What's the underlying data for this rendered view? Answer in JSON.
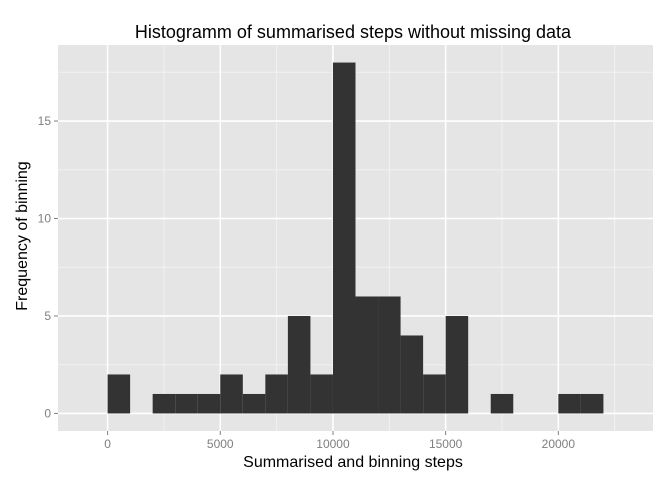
{
  "chart_data": {
    "type": "bar",
    "title": "Histogramm of summarised steps without missing data",
    "xlabel": "Summarised and binning steps",
    "ylabel": "Frequency of binning",
    "binwidth": 1000,
    "bins": [
      {
        "x0": 0,
        "x1": 1000,
        "count": 2
      },
      {
        "x0": 1000,
        "x1": 2000,
        "count": 0
      },
      {
        "x0": 2000,
        "x1": 3000,
        "count": 1
      },
      {
        "x0": 3000,
        "x1": 4000,
        "count": 1
      },
      {
        "x0": 4000,
        "x1": 5000,
        "count": 1
      },
      {
        "x0": 5000,
        "x1": 6000,
        "count": 2
      },
      {
        "x0": 6000,
        "x1": 7000,
        "count": 1
      },
      {
        "x0": 7000,
        "x1": 8000,
        "count": 2
      },
      {
        "x0": 8000,
        "x1": 9000,
        "count": 5
      },
      {
        "x0": 9000,
        "x1": 10000,
        "count": 2
      },
      {
        "x0": 10000,
        "x1": 11000,
        "count": 18
      },
      {
        "x0": 11000,
        "x1": 12000,
        "count": 6
      },
      {
        "x0": 12000,
        "x1": 13000,
        "count": 6
      },
      {
        "x0": 13000,
        "x1": 14000,
        "count": 4
      },
      {
        "x0": 14000,
        "x1": 15000,
        "count": 2
      },
      {
        "x0": 15000,
        "x1": 16000,
        "count": 5
      },
      {
        "x0": 16000,
        "x1": 17000,
        "count": 0
      },
      {
        "x0": 17000,
        "x1": 18000,
        "count": 1
      },
      {
        "x0": 18000,
        "x1": 19000,
        "count": 0
      },
      {
        "x0": 19000,
        "x1": 20000,
        "count": 0
      },
      {
        "x0": 20000,
        "x1": 21000,
        "count": 1
      },
      {
        "x0": 21000,
        "x1": 22000,
        "count": 1
      }
    ],
    "xlim": [
      -2200,
      24200
    ],
    "ylim": [
      -0.9,
      18.9
    ],
    "xticks": [
      0,
      5000,
      10000,
      15000,
      20000
    ],
    "xtick_labels": [
      "0",
      "5000",
      "10000",
      "15000",
      "20000"
    ],
    "yticks": [
      0,
      5,
      10,
      15
    ],
    "ytick_labels": [
      "0",
      "5",
      "10",
      "15"
    ],
    "grid": true,
    "colors": {
      "panel": "#e5e5e5",
      "grid_major": "#ffffff",
      "grid_minor": "#f2f2f2",
      "bar": "#333333",
      "tick_text": "#7f7f7f"
    }
  }
}
